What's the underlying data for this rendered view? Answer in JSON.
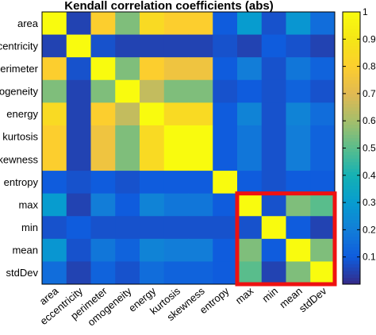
{
  "chart_data": {
    "type": "heatmap",
    "title": "Kendall correlation coefficients (abs)",
    "labels": [
      "area",
      "eccentricity",
      "perimeter",
      "homogeneity",
      "energy",
      "kurtosis",
      "skewness",
      "entropy",
      "max",
      "min",
      "mean",
      "stdDev"
    ],
    "row_labels_shown": [
      "area",
      "eccentricity",
      "perimeter",
      "omogeneity",
      "energy",
      "kurtosis",
      "skewness",
      "entropy",
      "max",
      "min",
      "mean",
      "stdDev"
    ],
    "col_labels_shown": [
      "area",
      "eccentricity",
      "perimeter",
      "omogeneity",
      "energy",
      "kurtosis",
      "skewness",
      "entropy",
      "max",
      "min",
      "mean",
      "stdDev"
    ],
    "values": [
      [
        1.0,
        0.05,
        0.8,
        0.55,
        0.85,
        0.8,
        0.8,
        0.1,
        0.3,
        0.08,
        0.28,
        0.15
      ],
      [
        0.05,
        1.0,
        0.08,
        0.05,
        0.05,
        0.05,
        0.05,
        0.08,
        0.05,
        0.1,
        0.08,
        0.05
      ],
      [
        0.8,
        0.08,
        1.0,
        0.55,
        0.8,
        0.75,
        0.75,
        0.1,
        0.2,
        0.08,
        0.18,
        0.12
      ],
      [
        0.55,
        0.05,
        0.55,
        1.0,
        0.65,
        0.55,
        0.55,
        0.08,
        0.1,
        0.08,
        0.12,
        0.08
      ],
      [
        0.85,
        0.05,
        0.8,
        0.65,
        1.0,
        0.85,
        0.85,
        0.1,
        0.22,
        0.08,
        0.22,
        0.15
      ],
      [
        0.8,
        0.05,
        0.75,
        0.55,
        0.85,
        1.0,
        1.0,
        0.1,
        0.18,
        0.08,
        0.2,
        0.12
      ],
      [
        0.8,
        0.05,
        0.75,
        0.55,
        0.85,
        1.0,
        1.0,
        0.1,
        0.18,
        0.08,
        0.2,
        0.12
      ],
      [
        0.1,
        0.08,
        0.1,
        0.08,
        0.1,
        0.1,
        0.1,
        1.0,
        0.1,
        0.08,
        0.1,
        0.1
      ],
      [
        0.3,
        0.05,
        0.2,
        0.1,
        0.22,
        0.18,
        0.18,
        0.1,
        1.0,
        0.08,
        0.55,
        0.5
      ],
      [
        0.08,
        0.1,
        0.08,
        0.08,
        0.08,
        0.08,
        0.08,
        0.08,
        0.08,
        1.0,
        0.1,
        0.05
      ],
      [
        0.28,
        0.08,
        0.18,
        0.12,
        0.22,
        0.2,
        0.2,
        0.1,
        0.55,
        0.1,
        1.0,
        0.55
      ],
      [
        0.15,
        0.05,
        0.12,
        0.08,
        0.15,
        0.12,
        0.12,
        0.1,
        0.5,
        0.05,
        0.55,
        1.0
      ]
    ],
    "colorbar": {
      "colormap": "parula",
      "range": [
        0,
        1
      ],
      "ticks": [
        "0.1",
        "0.2",
        "0.3",
        "0.4",
        "0.5",
        "0.6",
        "0.7",
        "0.8",
        "0.9",
        "1"
      ]
    },
    "highlight": {
      "rows": [
        8,
        11
      ],
      "cols": [
        8,
        11
      ],
      "color": "#ee1111"
    },
    "grid": false
  }
}
